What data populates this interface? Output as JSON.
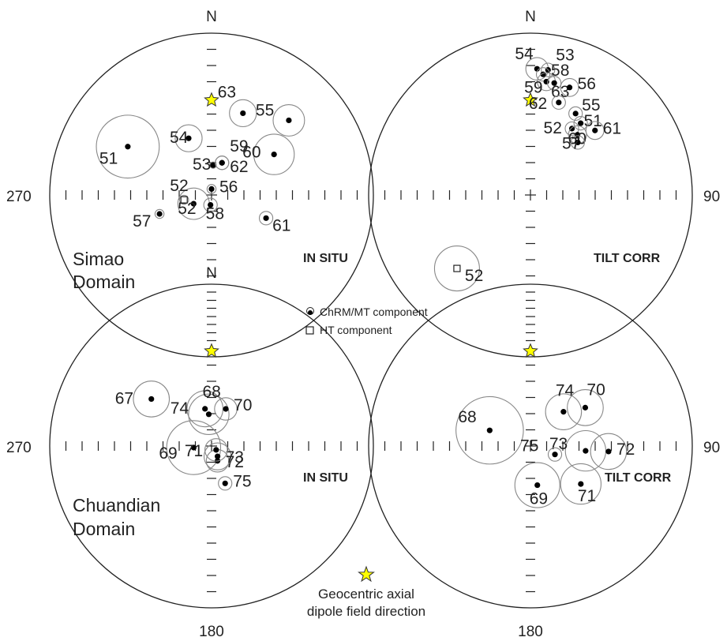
{
  "colors": {
    "net": "#222222",
    "confidence": "#888888",
    "gad_star": "#ffff00"
  },
  "legend": {
    "chrm_label": "ChRM/MT component",
    "ht_label": "HT component",
    "gad_label_line1": "Geocentric axial",
    "gad_label_line2": "dipole field direction"
  },
  "nets": [
    {
      "domain_line1": "Simao",
      "domain_line2": "Domain",
      "mode": "IN SITU",
      "north": "N",
      "west": "270",
      "east": "",
      "south": "",
      "sites": [
        {
          "label": "51",
          "dec": 300,
          "inc": 40,
          "a95": 14,
          "kind": "chrm"
        },
        {
          "label": "54",
          "dec": 338,
          "inc": 59,
          "a95": 6,
          "kind": "chrm"
        },
        {
          "label": "63",
          "dec": 21,
          "inc": 45,
          "a95": 6,
          "kind": "chrm"
        },
        {
          "label": "55",
          "dec": 46,
          "inc": 34,
          "a95": 7,
          "kind": "chrm"
        },
        {
          "label": "53",
          "dec": 3,
          "inc": 75,
          "a95": 1,
          "kind": "chrm"
        },
        {
          "label": "59",
          "dec": 18,
          "inc": 73,
          "a95": 3,
          "kind": "chrm"
        },
        {
          "label": "62",
          "dec": 18,
          "inc": 73,
          "a95": 3,
          "kind": "chrm"
        },
        {
          "label": "60",
          "dec": 57,
          "inc": 52,
          "a95": 9,
          "kind": "chrm"
        },
        {
          "label": "56",
          "dec": 0,
          "inc": 87,
          "a95": 2,
          "kind": "chrm"
        },
        {
          "label": "52",
          "dec": 244,
          "inc": 80,
          "a95": 7,
          "kind": "chrm"
        },
        {
          "label": "52",
          "dec": 260,
          "inc": 76,
          "a95": 2,
          "kind": "ht"
        },
        {
          "label": "58",
          "dec": 186,
          "inc": 85,
          "a95": 3,
          "kind": "chrm"
        },
        {
          "label": "57",
          "dec": 250,
          "inc": 62,
          "a95": 2,
          "kind": "chrm"
        },
        {
          "label": "61",
          "dec": 113,
          "inc": 60,
          "a95": 3,
          "kind": "chrm"
        }
      ]
    },
    {
      "domain_line1": "",
      "domain_line2": "",
      "mode": "TILT CORR",
      "north": "N",
      "west": "",
      "east": "90",
      "south": "",
      "sites": [
        {
          "label": "54",
          "dec": 3,
          "inc": 23,
          "a95": 5,
          "kind": "chrm"
        },
        {
          "label": "53",
          "dec": 8,
          "inc": 23,
          "a95": 3,
          "kind": "chrm"
        },
        {
          "label": "58",
          "dec": 6,
          "inc": 26,
          "a95": 3,
          "kind": "chrm"
        },
        {
          "label": "59",
          "dec": 8,
          "inc": 30,
          "a95": 4,
          "kind": "chrm"
        },
        {
          "label": "63",
          "dec": 12,
          "inc": 30,
          "a95": 3,
          "kind": "chrm"
        },
        {
          "label": "56",
          "dec": 20,
          "inc": 30,
          "a95": 4,
          "kind": "chrm"
        },
        {
          "label": "62",
          "dec": 17,
          "inc": 40,
          "a95": 3,
          "kind": "chrm"
        },
        {
          "label": "55",
          "dec": 29,
          "inc": 42,
          "a95": 3,
          "kind": "chrm"
        },
        {
          "label": "51",
          "dec": 35,
          "inc": 45,
          "a95": 3,
          "kind": "chrm"
        },
        {
          "label": "52",
          "dec": 32,
          "inc": 50,
          "a95": 3,
          "kind": "chrm"
        },
        {
          "label": "61",
          "dec": 45,
          "inc": 43,
          "a95": 4,
          "kind": "chrm"
        },
        {
          "label": "60",
          "dec": 38,
          "inc": 51,
          "a95": 4,
          "kind": "chrm"
        },
        {
          "label": "57",
          "dec": 42,
          "inc": 54,
          "a95": 3,
          "kind": "chrm"
        },
        {
          "label": "52",
          "dec": 225,
          "inc": 36,
          "a95": 10,
          "kind": "ht"
        }
      ]
    },
    {
      "domain_line1": "Chuandian",
      "domain_line2": "Domain",
      "mode": "IN SITU",
      "north": "N",
      "west": "270",
      "east": "",
      "south": "180",
      "sites": [
        {
          "label": "67",
          "dec": 308,
          "inc": 51,
          "a95": 8,
          "kind": "chrm"
        },
        {
          "label": "74",
          "dec": 350,
          "inc": 71,
          "a95": 8,
          "kind": "chrm"
        },
        {
          "label": "68",
          "dec": 355,
          "inc": 74,
          "a95": 9,
          "kind": "chrm"
        },
        {
          "label": "70",
          "dec": 21,
          "inc": 70,
          "a95": 5,
          "kind": "chrm"
        },
        {
          "label": "69",
          "dec": 265,
          "inc": 81,
          "a95": 12,
          "kind": "chrm"
        },
        {
          "label": "72",
          "dec": 158,
          "inc": 82,
          "a95": 5,
          "kind": "chrm"
        },
        {
          "label": "73",
          "dec": 150,
          "inc": 84,
          "a95": 6,
          "kind": "chrm"
        },
        {
          "label": "71",
          "dec": 130,
          "inc": 87,
          "a95": 5,
          "kind": "chrm"
        },
        {
          "label": "75",
          "dec": 160,
          "inc": 70,
          "a95": 3,
          "kind": "chrm"
        }
      ]
    },
    {
      "domain_line1": "",
      "domain_line2": "",
      "mode": "TILT CORR",
      "north": "",
      "west": "",
      "east": "90",
      "south": "180",
      "sites": [
        {
          "label": "68",
          "dec": 291,
          "inc": 68,
          "a95": 15,
          "kind": "chrm"
        },
        {
          "label": "74",
          "dec": 44,
          "inc": 66,
          "a95": 8,
          "kind": "chrm"
        },
        {
          "label": "70",
          "dec": 55,
          "inc": 56,
          "a95": 8,
          "kind": "chrm"
        },
        {
          "label": "73",
          "dec": 95,
          "inc": 62,
          "a95": 9,
          "kind": "chrm"
        },
        {
          "label": "72",
          "dec": 94,
          "inc": 50,
          "a95": 8,
          "kind": "chrm"
        },
        {
          "label": "75",
          "dec": 109,
          "inc": 77,
          "a95": 3,
          "kind": "chrm"
        },
        {
          "label": "71",
          "dec": 127,
          "inc": 58,
          "a95": 9,
          "kind": "chrm"
        },
        {
          "label": "69",
          "dec": 170,
          "inc": 70,
          "a95": 10,
          "kind": "chrm"
        }
      ]
    }
  ]
}
